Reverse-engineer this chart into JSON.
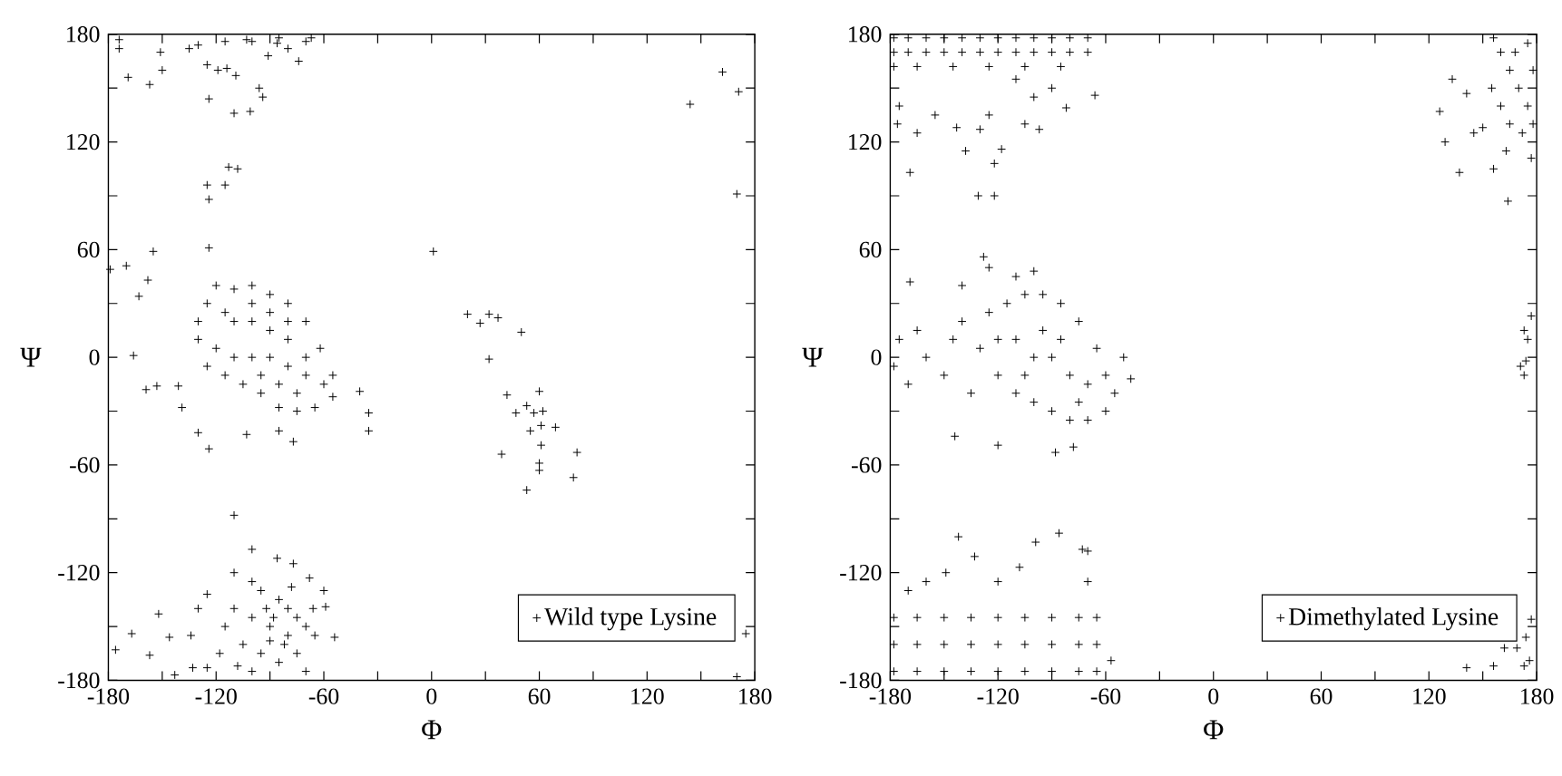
{
  "chart_data": [
    {
      "type": "scatter",
      "xlabel": "Φ",
      "ylabel": "Ψ",
      "legend": "bottom right",
      "marker": "cross",
      "xlim": [
        -180,
        180
      ],
      "ylim": [
        -180,
        180
      ],
      "xticks": [
        -180,
        {
          "value": -150,
          "label": null
        },
        -120,
        {
          "value": -90,
          "label": null
        },
        -60,
        {
          "value": -30,
          "label": null
        },
        0,
        {
          "value": 30,
          "label": null
        },
        60,
        {
          "value": 90,
          "label": null
        },
        120,
        {
          "value": 150,
          "label": null
        },
        180
      ],
      "yticks": [
        -180,
        {
          "value": -150,
          "label": null
        },
        -120,
        {
          "value": -90,
          "label": null
        },
        -60,
        {
          "value": -30,
          "label": null
        },
        0,
        {
          "value": 30,
          "label": null
        },
        60,
        {
          "value": 90,
          "label": null
        },
        120,
        {
          "value": 150,
          "label": null
        },
        180
      ],
      "series": [
        {
          "name": "Wild type Lysine",
          "color": "#000000",
          "x": [
            -174,
            -174,
            -169,
            -157,
            -151,
            -150,
            -135,
            -130,
            -125,
            -124,
            -115,
            -119,
            -114,
            -109,
            -110,
            -101,
            -96,
            -94,
            -103,
            -91,
            -86,
            -74,
            -67,
            -100,
            -85,
            -80,
            -70,
            -113,
            -108,
            -125,
            -115,
            -124,
            -124,
            -155,
            -170,
            -179,
            -158,
            -163,
            -166,
            -159,
            -153,
            -141,
            -139,
            -130,
            -124,
            -103,
            -85,
            -77,
            -40,
            -35,
            -35,
            1,
            20,
            27,
            32,
            37,
            50,
            32,
            42,
            39,
            47,
            53,
            57,
            62,
            55,
            60,
            61,
            69,
            61,
            60,
            60,
            81,
            79,
            53,
            144,
            162,
            171,
            170,
            175,
            170,
            -110,
            -100,
            -86,
            -77,
            -125,
            -152,
            -130,
            -167,
            -176,
            -157,
            -146,
            -134,
            -143,
            -133,
            -125,
            -54,
            -59,
            -68,
            -125,
            -120,
            -110,
            -100,
            -90,
            -80,
            -70,
            -62,
            -55,
            -55,
            -65,
            -75,
            -85,
            -95,
            -105,
            -115,
            -125,
            -130,
            -130,
            -110,
            -100,
            -90,
            -80,
            -110,
            -100,
            -90,
            -80,
            -70,
            -60,
            -95,
            -85,
            -75,
            -120,
            -115,
            -70,
            -100,
            -90,
            -80,
            -110,
            -100,
            -95,
            -85,
            -80,
            -75,
            -70,
            -65,
            -80,
            -90,
            -100,
            -110,
            -115,
            -105,
            -95,
            -85,
            -75,
            -70,
            -100,
            -90,
            -82,
            -88,
            -78,
            -92,
            -118,
            -108,
            -66,
            -60
          ],
          "values": [
            177,
            172,
            156,
            152,
            170,
            160,
            172,
            174,
            163,
            144,
            176,
            160,
            161,
            157,
            136,
            137,
            150,
            145,
            177,
            168,
            175,
            165,
            178,
            176,
            178,
            172,
            176,
            106,
            105,
            96,
            96,
            88,
            61,
            59,
            51,
            49,
            43,
            34,
            1,
            -18,
            -16,
            -16,
            -28,
            -42,
            -51,
            -43,
            -41,
            -47,
            -19,
            -31,
            -41,
            59,
            24,
            19,
            24,
            22,
            14,
            -1,
            -21,
            -54,
            -31,
            -27,
            -31,
            -30,
            -41,
            -19,
            -38,
            -39,
            -49,
            -59,
            -63,
            -53,
            -67,
            -74,
            141,
            159,
            148,
            91,
            -154,
            -178,
            -88,
            -107,
            -112,
            -115,
            -132,
            -143,
            -140,
            -154,
            -163,
            -166,
            -156,
            -155,
            -177,
            -173,
            -173,
            -156,
            -139,
            -123,
            30,
            40,
            38,
            40,
            35,
            30,
            20,
            5,
            -10,
            -22,
            -28,
            -30,
            -28,
            -20,
            -15,
            -10,
            -5,
            10,
            20,
            20,
            20,
            15,
            10,
            0,
            0,
            0,
            -5,
            -10,
            -15,
            -10,
            -15,
            -20,
            5,
            25,
            0,
            30,
            25,
            20,
            -120,
            -125,
            -130,
            -135,
            -140,
            -145,
            -150,
            -155,
            -155,
            -150,
            -145,
            -140,
            -150,
            -160,
            -165,
            -170,
            -165,
            -175,
            -175,
            -158,
            -160,
            -145,
            -128,
            -140,
            -165,
            -172,
            -140,
            -130
          ]
        }
      ]
    },
    {
      "type": "scatter",
      "xlabel": "Φ",
      "ylabel": "Ψ",
      "legend": "bottom right",
      "marker": "cross",
      "xlim": [
        -180,
        180
      ],
      "ylim": [
        -180,
        180
      ],
      "xticks": [
        -180,
        {
          "value": -150,
          "label": null
        },
        -120,
        {
          "value": -90,
          "label": null
        },
        -60,
        {
          "value": -30,
          "label": null
        },
        0,
        {
          "value": 30,
          "label": null
        },
        60,
        {
          "value": 90,
          "label": null
        },
        120,
        {
          "value": 150,
          "label": null
        },
        180
      ],
      "yticks": [
        -180,
        {
          "value": -150,
          "label": null
        },
        -120,
        {
          "value": -90,
          "label": null
        },
        -60,
        {
          "value": -30,
          "label": null
        },
        0,
        {
          "value": 30,
          "label": null
        },
        60,
        {
          "value": 90,
          "label": null
        },
        120,
        {
          "value": 150,
          "label": null
        },
        180
      ],
      "series": [
        {
          "name": "Dimethylated Lysine",
          "color": "#000000",
          "x": [
            -178,
            -170,
            -160,
            -150,
            -140,
            -130,
            -120,
            -110,
            -100,
            -90,
            -80,
            -70,
            -178,
            -170,
            -160,
            -150,
            -140,
            -130,
            -120,
            -110,
            -100,
            -90,
            -80,
            -70,
            -178,
            -165,
            -145,
            -125,
            -105,
            -85,
            -175,
            -176,
            -169,
            -165,
            -155,
            -143,
            -138,
            -130,
            -125,
            -131,
            -122,
            -122,
            -118,
            -105,
            -97,
            -82,
            -66,
            -110,
            -90,
            -100,
            156,
            160,
            165,
            170,
            175,
            178,
            172,
            165,
            160,
            155,
            168,
            175,
            178,
            163,
            164,
            133,
            126,
            129,
            137,
            141,
            150,
            145,
            156,
            177,
            173,
            175,
            171,
            173,
            174,
            177,
            169,
            174,
            177,
            176,
            173,
            162,
            156,
            141,
            -178,
            -165,
            -150,
            -135,
            -120,
            -105,
            -90,
            -75,
            -65,
            -178,
            -165,
            -150,
            -135,
            -120,
            -105,
            -90,
            -75,
            -65,
            -178,
            -165,
            -150,
            -135,
            -120,
            -105,
            -90,
            -75,
            -65,
            -170,
            -160,
            -149,
            -142,
            -133,
            -120,
            -108,
            -99,
            -86,
            -73,
            -70,
            -70,
            -57,
            -175,
            -178,
            -170,
            -165,
            -160,
            -150,
            -145,
            -140,
            -135,
            -130,
            -125,
            -120,
            -115,
            -105,
            -95,
            -85,
            -75,
            -65,
            -60,
            -55,
            -60,
            -70,
            -80,
            -90,
            -100,
            -110,
            -120,
            -100,
            -90,
            -80,
            -70,
            -95,
            -85,
            -110,
            -75,
            -105,
            -50,
            -46,
            -169,
            -144,
            -120,
            -128,
            -125,
            -100,
            -88,
            -78,
            -110,
            -140
          ],
          "values": [
            178,
            178,
            178,
            178,
            178,
            178,
            178,
            178,
            178,
            178,
            178,
            178,
            170,
            170,
            170,
            170,
            170,
            170,
            170,
            170,
            170,
            170,
            170,
            170,
            162,
            162,
            162,
            162,
            162,
            162,
            140,
            130,
            103,
            125,
            135,
            128,
            115,
            127,
            135,
            90,
            90,
            108,
            116,
            130,
            127,
            139,
            146,
            155,
            150,
            145,
            178,
            170,
            160,
            150,
            140,
            130,
            125,
            130,
            140,
            150,
            170,
            175,
            160,
            115,
            87,
            155,
            137,
            120,
            103,
            147,
            128,
            125,
            105,
            111,
            15,
            10,
            -5,
            -10,
            -2,
            23,
            -162,
            -156,
            -146,
            -169,
            -172,
            -162,
            -172,
            -173,
            -175,
            -175,
            -175,
            -175,
            -175,
            -175,
            -175,
            -175,
            -175,
            -160,
            -160,
            -160,
            -160,
            -160,
            -160,
            -160,
            -160,
            -160,
            -145,
            -145,
            -145,
            -145,
            -145,
            -145,
            -145,
            -145,
            -145,
            -130,
            -125,
            -120,
            -100,
            -111,
            -125,
            -117,
            -103,
            -98,
            -107,
            -108,
            -125,
            -169,
            10,
            -5,
            -15,
            15,
            0,
            -10,
            10,
            20,
            -20,
            5,
            25,
            10,
            30,
            35,
            35,
            30,
            20,
            5,
            -10,
            -20,
            -30,
            -35,
            -35,
            -30,
            -25,
            -20,
            -10,
            0,
            0,
            -10,
            -15,
            15,
            10,
            10,
            -25,
            -10,
            0,
            -12,
            42,
            -44,
            -49,
            56,
            50,
            48,
            -53,
            -50,
            45,
            40
          ]
        }
      ]
    }
  ]
}
